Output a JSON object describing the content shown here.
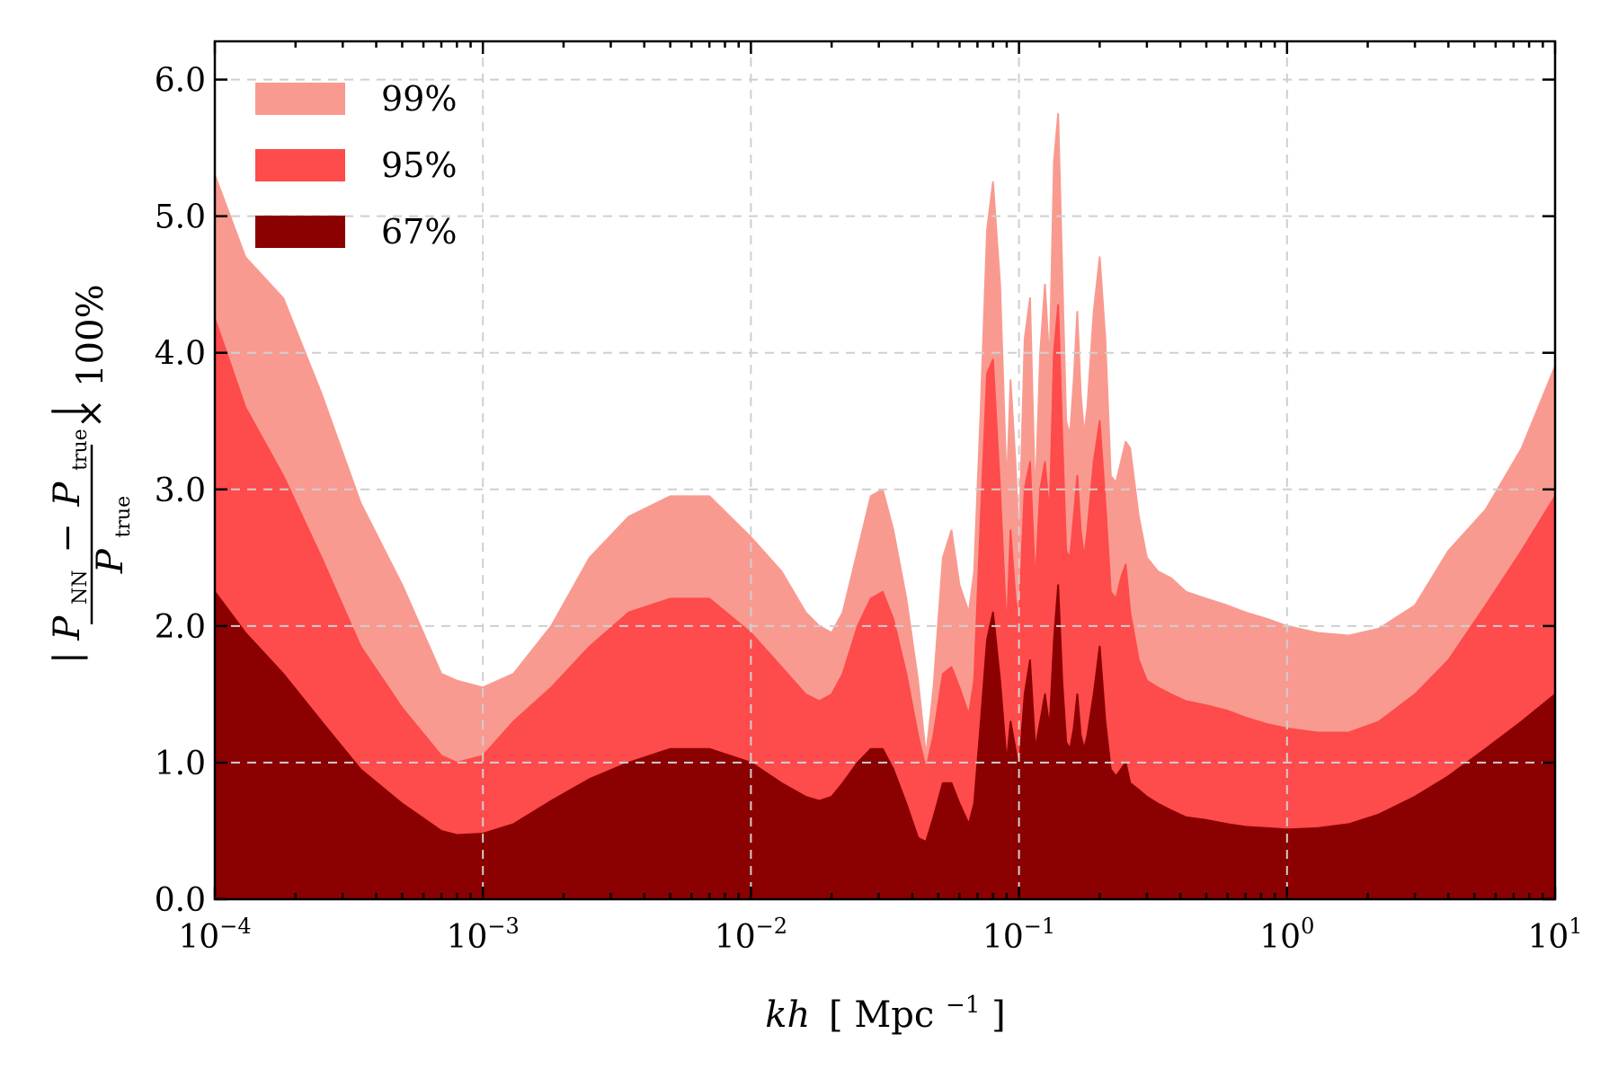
{
  "chart_data": {
    "type": "area",
    "x_scale": "log",
    "xlim": [
      0.0001,
      10
    ],
    "ylim": [
      0,
      6.28
    ],
    "grid": true,
    "legend_position": "top-left",
    "x_ticks": [
      {
        "value": 0.0001,
        "base": "10",
        "exp": "−4"
      },
      {
        "value": 0.001,
        "base": "10",
        "exp": "−3"
      },
      {
        "value": 0.01,
        "base": "10",
        "exp": "−2"
      },
      {
        "value": 0.1,
        "base": "10",
        "exp": "−1"
      },
      {
        "value": 1,
        "base": "10",
        "exp": "0"
      },
      {
        "value": 10,
        "base": "10",
        "exp": "1"
      }
    ],
    "y_ticks": [
      {
        "value": 0,
        "label": "0.0"
      },
      {
        "value": 1,
        "label": "1.0"
      },
      {
        "value": 2,
        "label": "2.0"
      },
      {
        "value": 3,
        "label": "3.0"
      },
      {
        "value": 4,
        "label": "4.0"
      },
      {
        "value": 5,
        "label": "5.0"
      },
      {
        "value": 6,
        "label": "6.0"
      }
    ],
    "xlabel": {
      "var": "kh",
      "unit_open": "[",
      "unit": "Mpc",
      "unit_exp": "−1",
      "unit_close": "]"
    },
    "ylabel": {
      "num_open": "|",
      "num_P1": "P",
      "num_sub1": "NN",
      "num_minus": "−",
      "num_P2": "P",
      "num_sub2": "true",
      "num_close": "|",
      "den_P": "P",
      "den_sub": "true",
      "times": "× 100%"
    },
    "series": [
      {
        "name": "99%",
        "color": "#f99a90",
        "x": [
          0.0001,
          0.00013,
          0.00018,
          0.00025,
          0.00035,
          0.0005,
          0.0007,
          0.0008,
          0.001,
          0.0013,
          0.0018,
          0.0025,
          0.0035,
          0.005,
          0.007,
          0.01,
          0.013,
          0.016,
          0.018,
          0.02,
          0.022,
          0.025,
          0.028,
          0.031,
          0.034,
          0.038,
          0.042,
          0.045,
          0.048,
          0.052,
          0.056,
          0.06,
          0.065,
          0.068,
          0.072,
          0.076,
          0.08,
          0.085,
          0.09,
          0.093,
          0.097,
          0.1,
          0.105,
          0.11,
          0.115,
          0.12,
          0.125,
          0.13,
          0.135,
          0.14,
          0.145,
          0.15,
          0.155,
          0.16,
          0.165,
          0.17,
          0.175,
          0.18,
          0.19,
          0.2,
          0.21,
          0.22,
          0.23,
          0.24,
          0.25,
          0.26,
          0.28,
          0.3,
          0.33,
          0.37,
          0.42,
          0.5,
          0.6,
          0.7,
          0.85,
          1.0,
          1.3,
          1.7,
          2.2,
          3.0,
          4.0,
          5.5,
          7.5,
          10
        ],
        "y": [
          5.3,
          4.7,
          4.4,
          3.7,
          2.9,
          2.3,
          1.65,
          1.6,
          1.55,
          1.65,
          2.0,
          2.5,
          2.8,
          2.95,
          2.95,
          2.65,
          2.4,
          2.1,
          2.0,
          1.95,
          2.1,
          2.55,
          2.95,
          3.0,
          2.7,
          2.2,
          1.6,
          1.05,
          1.55,
          2.5,
          2.7,
          2.3,
          2.1,
          2.4,
          3.6,
          4.9,
          5.25,
          4.5,
          3.0,
          3.8,
          3.2,
          2.6,
          4.1,
          4.4,
          2.9,
          4.0,
          4.5,
          3.9,
          5.4,
          5.75,
          4.6,
          3.5,
          3.4,
          3.8,
          4.3,
          3.7,
          3.4,
          3.6,
          4.3,
          4.7,
          4.1,
          3.1,
          3.05,
          3.2,
          3.35,
          3.3,
          2.8,
          2.5,
          2.4,
          2.35,
          2.25,
          2.2,
          2.15,
          2.1,
          2.05,
          2.0,
          1.95,
          1.93,
          1.98,
          2.15,
          2.55,
          2.85,
          3.3,
          3.9
        ]
      },
      {
        "name": "95%",
        "color": "#fe4b4b",
        "x": [
          0.0001,
          0.00013,
          0.00018,
          0.00025,
          0.00035,
          0.0005,
          0.0007,
          0.0008,
          0.001,
          0.0013,
          0.0018,
          0.0025,
          0.0035,
          0.005,
          0.007,
          0.01,
          0.013,
          0.016,
          0.018,
          0.02,
          0.022,
          0.025,
          0.028,
          0.031,
          0.034,
          0.038,
          0.042,
          0.045,
          0.048,
          0.052,
          0.056,
          0.06,
          0.065,
          0.068,
          0.072,
          0.076,
          0.08,
          0.085,
          0.09,
          0.093,
          0.097,
          0.1,
          0.105,
          0.11,
          0.115,
          0.12,
          0.125,
          0.13,
          0.135,
          0.14,
          0.145,
          0.15,
          0.155,
          0.16,
          0.165,
          0.17,
          0.175,
          0.18,
          0.19,
          0.2,
          0.21,
          0.22,
          0.23,
          0.24,
          0.25,
          0.26,
          0.28,
          0.3,
          0.33,
          0.37,
          0.42,
          0.5,
          0.6,
          0.7,
          0.85,
          1.0,
          1.3,
          1.7,
          2.2,
          3.0,
          4.0,
          5.5,
          7.5,
          10
        ],
        "y": [
          4.25,
          3.6,
          3.1,
          2.5,
          1.85,
          1.4,
          1.05,
          1.0,
          1.05,
          1.3,
          1.55,
          1.85,
          2.1,
          2.2,
          2.2,
          1.95,
          1.7,
          1.5,
          1.45,
          1.5,
          1.65,
          2.0,
          2.2,
          2.25,
          2.05,
          1.65,
          1.2,
          0.95,
          1.2,
          1.65,
          1.7,
          1.55,
          1.35,
          1.6,
          2.8,
          3.85,
          3.95,
          3.0,
          1.95,
          2.7,
          2.2,
          2.05,
          3.0,
          3.2,
          2.3,
          3.0,
          3.2,
          2.8,
          4.0,
          4.35,
          3.4,
          2.55,
          2.5,
          2.8,
          3.1,
          2.7,
          2.5,
          2.7,
          3.2,
          3.5,
          2.9,
          2.25,
          2.2,
          2.35,
          2.45,
          2.1,
          1.75,
          1.6,
          1.55,
          1.5,
          1.45,
          1.42,
          1.38,
          1.33,
          1.28,
          1.25,
          1.22,
          1.22,
          1.3,
          1.5,
          1.75,
          2.15,
          2.55,
          2.95
        ]
      },
      {
        "name": "67%",
        "color": "#8b0000",
        "x": [
          0.0001,
          0.00013,
          0.00018,
          0.00025,
          0.00035,
          0.0005,
          0.0007,
          0.0008,
          0.001,
          0.0013,
          0.0018,
          0.0025,
          0.0035,
          0.005,
          0.007,
          0.01,
          0.013,
          0.016,
          0.018,
          0.02,
          0.022,
          0.025,
          0.028,
          0.031,
          0.034,
          0.038,
          0.042,
          0.045,
          0.048,
          0.052,
          0.056,
          0.06,
          0.065,
          0.068,
          0.072,
          0.076,
          0.08,
          0.085,
          0.09,
          0.093,
          0.097,
          0.1,
          0.105,
          0.11,
          0.115,
          0.12,
          0.125,
          0.13,
          0.135,
          0.14,
          0.145,
          0.15,
          0.155,
          0.16,
          0.165,
          0.17,
          0.175,
          0.18,
          0.19,
          0.2,
          0.21,
          0.22,
          0.23,
          0.24,
          0.25,
          0.26,
          0.28,
          0.3,
          0.33,
          0.37,
          0.42,
          0.5,
          0.6,
          0.7,
          0.85,
          1.0,
          1.3,
          1.7,
          2.2,
          3.0,
          4.0,
          5.5,
          7.5,
          10
        ],
        "y": [
          2.25,
          1.95,
          1.65,
          1.3,
          0.95,
          0.7,
          0.5,
          0.47,
          0.48,
          0.55,
          0.72,
          0.88,
          1.0,
          1.1,
          1.1,
          1.0,
          0.85,
          0.75,
          0.72,
          0.75,
          0.85,
          1.0,
          1.1,
          1.1,
          0.95,
          0.7,
          0.45,
          0.42,
          0.6,
          0.85,
          0.85,
          0.7,
          0.55,
          0.7,
          1.3,
          1.9,
          2.1,
          1.6,
          1.0,
          1.3,
          1.1,
          0.95,
          1.5,
          1.75,
          1.1,
          1.3,
          1.5,
          1.25,
          1.9,
          2.3,
          1.6,
          1.15,
          1.1,
          1.25,
          1.5,
          1.2,
          1.1,
          1.2,
          1.5,
          1.85,
          1.3,
          0.95,
          0.9,
          0.95,
          1.0,
          0.85,
          0.8,
          0.75,
          0.7,
          0.65,
          0.6,
          0.58,
          0.55,
          0.53,
          0.52,
          0.51,
          0.52,
          0.55,
          0.62,
          0.75,
          0.9,
          1.1,
          1.3,
          1.5
        ]
      }
    ]
  }
}
